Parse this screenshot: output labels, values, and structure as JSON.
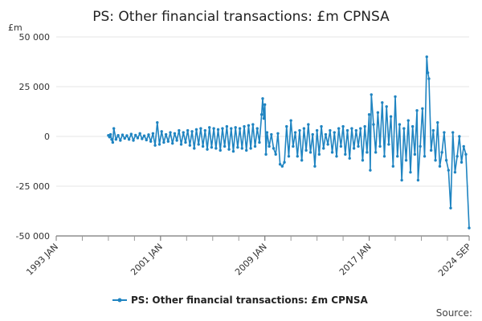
{
  "chart_data": {
    "type": "line",
    "title": "PS: Other financial transactions: £m CPNSA",
    "ylabel": "£m",
    "ylim": [
      -50000,
      50000
    ],
    "yticks": [
      50000,
      25000,
      0,
      -25000,
      -50000
    ],
    "ytick_labels": [
      "50 000",
      "25 000",
      "0",
      "-25 000",
      "-50 000"
    ],
    "xlim": [
      "1993-01",
      "2024-09"
    ],
    "xticks": [
      "1993-01",
      "2001-01",
      "2009-01",
      "2017-01",
      "2024-09"
    ],
    "xtick_labels": [
      "1993 JAN",
      "2001 JAN",
      "2009 JAN",
      "2017 JAN",
      "2024 SEP"
    ],
    "grid": true,
    "legend_position": "bottom",
    "color": "#1f84c1",
    "series": [
      {
        "name": "PS: Other financial transactions: £m CPNSA",
        "points": [
          [
            "1997-01",
            500
          ],
          [
            "1997-02",
            -300
          ],
          [
            "1997-03",
            1000
          ],
          [
            "1997-04",
            -1500
          ],
          [
            "1997-05",
            -3000
          ],
          [
            "1997-06",
            4000
          ],
          [
            "1997-08",
            -1500
          ],
          [
            "1997-10",
            500
          ],
          [
            "1997-12",
            -2000
          ],
          [
            "1998-02",
            800
          ],
          [
            "1998-04",
            -1000
          ],
          [
            "1998-06",
            400
          ],
          [
            "1998-08",
            -1500
          ],
          [
            "1998-10",
            1200
          ],
          [
            "1998-12",
            -2000
          ],
          [
            "1999-02",
            600
          ],
          [
            "1999-04",
            -800
          ],
          [
            "1999-06",
            1500
          ],
          [
            "1999-08",
            -1200
          ],
          [
            "1999-10",
            300
          ],
          [
            "1999-12",
            -1800
          ],
          [
            "2000-02",
            900
          ],
          [
            "2000-04",
            -2500
          ],
          [
            "2000-06",
            1500
          ],
          [
            "2000-08",
            -4500
          ],
          [
            "2000-10",
            7000
          ],
          [
            "2000-12",
            -4000
          ],
          [
            "2001-02",
            2500
          ],
          [
            "2001-04",
            -3000
          ],
          [
            "2001-06",
            1000
          ],
          [
            "2001-08",
            -2500
          ],
          [
            "2001-10",
            2000
          ],
          [
            "2001-12",
            -3500
          ],
          [
            "2002-02",
            1500
          ],
          [
            "2002-04",
            -2000
          ],
          [
            "2002-06",
            3000
          ],
          [
            "2002-08",
            -4000
          ],
          [
            "2002-10",
            2000
          ],
          [
            "2002-12",
            -3000
          ],
          [
            "2003-02",
            3000
          ],
          [
            "2003-04",
            -4500
          ],
          [
            "2003-06",
            2500
          ],
          [
            "2003-08",
            -6000
          ],
          [
            "2003-10",
            3500
          ],
          [
            "2003-12",
            -4000
          ],
          [
            "2004-02",
            4000
          ],
          [
            "2004-04",
            -5000
          ],
          [
            "2004-06",
            3000
          ],
          [
            "2004-08",
            -6500
          ],
          [
            "2004-10",
            4500
          ],
          [
            "2004-12",
            -5500
          ],
          [
            "2005-02",
            4000
          ],
          [
            "2005-04",
            -6000
          ],
          [
            "2005-06",
            3500
          ],
          [
            "2005-08",
            -7000
          ],
          [
            "2005-10",
            4000
          ],
          [
            "2005-12",
            -5000
          ],
          [
            "2006-02",
            5000
          ],
          [
            "2006-04",
            -6500
          ],
          [
            "2006-06",
            4000
          ],
          [
            "2006-08",
            -7500
          ],
          [
            "2006-10",
            4500
          ],
          [
            "2006-12",
            -5500
          ],
          [
            "2007-02",
            4000
          ],
          [
            "2007-04",
            -6000
          ],
          [
            "2007-06",
            5000
          ],
          [
            "2007-08",
            -7000
          ],
          [
            "2007-10",
            5500
          ],
          [
            "2007-12",
            -6000
          ],
          [
            "2008-02",
            6000
          ],
          [
            "2008-04",
            -5000
          ],
          [
            "2008-06",
            4000
          ],
          [
            "2008-08",
            -3000
          ],
          [
            "2008-10",
            11000
          ],
          [
            "2008-11",
            19000
          ],
          [
            "2008-12",
            9000
          ],
          [
            "2009-01",
            16000
          ],
          [
            "2009-02",
            -9000
          ],
          [
            "2009-03",
            2000
          ],
          [
            "2009-05",
            -5000
          ],
          [
            "2009-07",
            1000
          ],
          [
            "2009-09",
            -6000
          ],
          [
            "2009-11",
            -9000
          ],
          [
            "2010-01",
            1500
          ],
          [
            "2010-03",
            -14000
          ],
          [
            "2010-05",
            -15000
          ],
          [
            "2010-07",
            -13000
          ],
          [
            "2010-09",
            5000
          ],
          [
            "2010-11",
            -10000
          ],
          [
            "2011-01",
            8000
          ],
          [
            "2011-03",
            -5000
          ],
          [
            "2011-05",
            2000
          ],
          [
            "2011-07",
            -10000
          ],
          [
            "2011-09",
            3000
          ],
          [
            "2011-11",
            -12000
          ],
          [
            "2012-01",
            4000
          ],
          [
            "2012-03",
            -7000
          ],
          [
            "2012-05",
            6000
          ],
          [
            "2012-07",
            -8000
          ],
          [
            "2012-09",
            1000
          ],
          [
            "2012-11",
            -15000
          ],
          [
            "2013-01",
            3000
          ],
          [
            "2013-03",
            -9000
          ],
          [
            "2013-05",
            5000
          ],
          [
            "2013-07",
            -6000
          ],
          [
            "2013-09",
            1000
          ],
          [
            "2013-11",
            -4000
          ],
          [
            "2014-01",
            3000
          ],
          [
            "2014-03",
            -8000
          ],
          [
            "2014-05",
            2000
          ],
          [
            "2014-07",
            -10000
          ],
          [
            "2014-09",
            4000
          ],
          [
            "2014-11",
            -5000
          ],
          [
            "2015-01",
            5000
          ],
          [
            "2015-03",
            -9000
          ],
          [
            "2015-05",
            3000
          ],
          [
            "2015-07",
            -11000
          ],
          [
            "2015-09",
            4000
          ],
          [
            "2015-11",
            -6000
          ],
          [
            "2016-01",
            3000
          ],
          [
            "2016-03",
            -5000
          ],
          [
            "2016-05",
            4000
          ],
          [
            "2016-07",
            -12000
          ],
          [
            "2016-09",
            5000
          ],
          [
            "2016-11",
            -8000
          ],
          [
            "2017-01",
            11000
          ],
          [
            "2017-02",
            -17000
          ],
          [
            "2017-03",
            21000
          ],
          [
            "2017-05",
            6000
          ],
          [
            "2017-07",
            -8000
          ],
          [
            "2017-09",
            12000
          ],
          [
            "2017-11",
            -5000
          ],
          [
            "2018-01",
            17000
          ],
          [
            "2018-03",
            -10000
          ],
          [
            "2018-05",
            15000
          ],
          [
            "2018-07",
            -4000
          ],
          [
            "2018-09",
            10000
          ],
          [
            "2018-11",
            -15000
          ],
          [
            "2019-01",
            20000
          ],
          [
            "2019-03",
            -10000
          ],
          [
            "2019-05",
            6000
          ],
          [
            "2019-07",
            -22000
          ],
          [
            "2019-09",
            4000
          ],
          [
            "2019-11",
            -12000
          ],
          [
            "2020-01",
            8000
          ],
          [
            "2020-03",
            -18000
          ],
          [
            "2020-05",
            5000
          ],
          [
            "2020-07",
            -9000
          ],
          [
            "2020-09",
            13000
          ],
          [
            "2020-10",
            -22000
          ],
          [
            "2020-12",
            -5000
          ],
          [
            "2021-02",
            14000
          ],
          [
            "2021-04",
            -10000
          ],
          [
            "2021-06",
            40000
          ],
          [
            "2021-07",
            32000
          ],
          [
            "2021-08",
            29000
          ],
          [
            "2021-10",
            -7000
          ],
          [
            "2021-12",
            3000
          ],
          [
            "2022-02",
            -12000
          ],
          [
            "2022-04",
            7000
          ],
          [
            "2022-06",
            -15000
          ],
          [
            "2022-08",
            -8000
          ],
          [
            "2022-10",
            2000
          ],
          [
            "2022-12",
            -12000
          ],
          [
            "2023-02",
            -17000
          ],
          [
            "2023-04",
            -36000
          ],
          [
            "2023-06",
            2000
          ],
          [
            "2023-08",
            -18000
          ],
          [
            "2023-10",
            -10000
          ],
          [
            "2023-12",
            0
          ],
          [
            "2024-02",
            -13000
          ],
          [
            "2024-04",
            -5000
          ],
          [
            "2024-06",
            -9000
          ],
          [
            "2024-09",
            -46000
          ]
        ]
      }
    ]
  },
  "source_label": "Source:"
}
